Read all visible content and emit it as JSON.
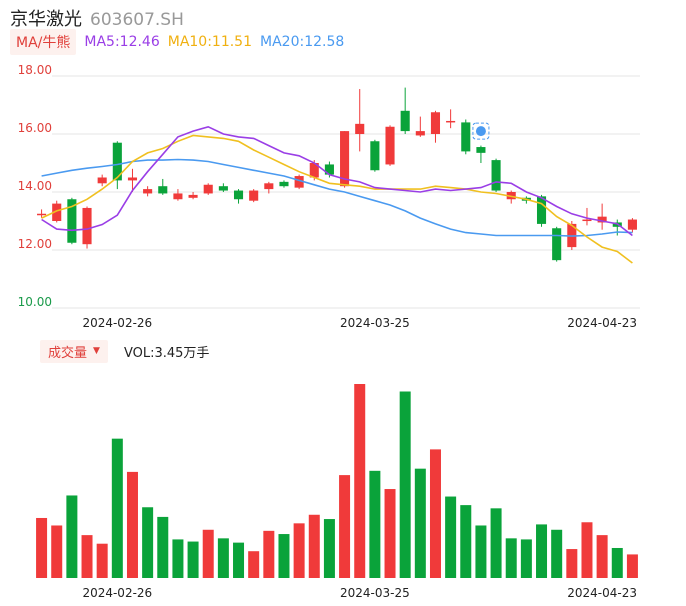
{
  "header": {
    "name": "京华激光",
    "code": "603607.SH"
  },
  "ma_row": {
    "tag": "MA/牛熊",
    "ma5": "MA5:12.46",
    "ma10": "MA10:11.51",
    "ma20": "MA20:12.58"
  },
  "vol_row": {
    "tag": "成交量",
    "text": "VOL:3.45万手"
  },
  "colors": {
    "up": "#f03a3a",
    "down": "#0aa33a",
    "ma5": "#9a3ee6",
    "ma10": "#f0c020",
    "ma20": "#4a9af0",
    "grid": "#e6e6e6"
  },
  "chart_data": {
    "type": "candlestick",
    "ylim": [
      10,
      18
    ],
    "y_ticks": [
      "18.00",
      "16.00",
      "14.00",
      "12.00",
      "10.00"
    ],
    "x_ticks": [
      "2024-02-26",
      "2024-03-25",
      "2024-04-23"
    ],
    "x_tick_indices": [
      5,
      22,
      37
    ],
    "candles": [
      {
        "o": 13.2,
        "c": 13.25,
        "h": 13.4,
        "l": 13.1
      },
      {
        "o": 13.0,
        "c": 13.6,
        "h": 13.7,
        "l": 12.95
      },
      {
        "o": 13.75,
        "c": 12.25,
        "h": 13.8,
        "l": 12.2
      },
      {
        "o": 12.2,
        "c": 13.45,
        "h": 13.5,
        "l": 12.05
      },
      {
        "o": 14.3,
        "c": 14.5,
        "h": 14.6,
        "l": 14.2
      },
      {
        "o": 15.7,
        "c": 14.4,
        "h": 15.75,
        "l": 14.1
      },
      {
        "o": 14.4,
        "c": 14.5,
        "h": 14.8,
        "l": 14.0
      },
      {
        "o": 13.95,
        "c": 14.1,
        "h": 14.2,
        "l": 13.85
      },
      {
        "o": 14.2,
        "c": 13.95,
        "h": 14.45,
        "l": 13.9
      },
      {
        "o": 13.75,
        "c": 13.95,
        "h": 14.1,
        "l": 13.7
      },
      {
        "o": 13.8,
        "c": 13.9,
        "h": 14.0,
        "l": 13.75
      },
      {
        "o": 13.95,
        "c": 14.25,
        "h": 14.3,
        "l": 13.9
      },
      {
        "o": 14.2,
        "c": 14.05,
        "h": 14.3,
        "l": 14.0
      },
      {
        "o": 14.05,
        "c": 13.75,
        "h": 14.1,
        "l": 13.6
      },
      {
        "o": 13.7,
        "c": 14.05,
        "h": 14.1,
        "l": 13.65
      },
      {
        "o": 14.1,
        "c": 14.3,
        "h": 14.35,
        "l": 13.95
      },
      {
        "o": 14.35,
        "c": 14.2,
        "h": 14.4,
        "l": 14.15
      },
      {
        "o": 14.15,
        "c": 14.55,
        "h": 14.6,
        "l": 14.1
      },
      {
        "o": 14.5,
        "c": 15.0,
        "h": 15.1,
        "l": 14.4
      },
      {
        "o": 14.95,
        "c": 14.6,
        "h": 15.05,
        "l": 14.5
      },
      {
        "o": 14.2,
        "c": 16.1,
        "h": 16.1,
        "l": 14.15
      },
      {
        "o": 16.0,
        "c": 16.35,
        "h": 17.55,
        "l": 15.4
      },
      {
        "o": 15.75,
        "c": 14.75,
        "h": 15.8,
        "l": 14.7
      },
      {
        "o": 14.95,
        "c": 16.25,
        "h": 16.3,
        "l": 14.9
      },
      {
        "o": 16.8,
        "c": 16.1,
        "h": 17.6,
        "l": 16.0
      },
      {
        "o": 15.95,
        "c": 16.1,
        "h": 16.6,
        "l": 15.9
      },
      {
        "o": 16.0,
        "c": 16.75,
        "h": 16.8,
        "l": 15.7
      },
      {
        "o": 16.4,
        "c": 16.45,
        "h": 16.85,
        "l": 16.2
      },
      {
        "o": 16.4,
        "c": 15.4,
        "h": 16.5,
        "l": 15.3
      },
      {
        "o": 15.55,
        "c": 15.35,
        "h": 15.6,
        "l": 15.0
      },
      {
        "o": 15.1,
        "c": 14.05,
        "h": 15.15,
        "l": 14.0
      },
      {
        "o": 13.75,
        "c": 14.0,
        "h": 14.05,
        "l": 13.6
      },
      {
        "o": 13.8,
        "c": 13.7,
        "h": 13.85,
        "l": 13.6
      },
      {
        "o": 13.85,
        "c": 12.9,
        "h": 13.9,
        "l": 12.8
      },
      {
        "o": 12.75,
        "c": 11.65,
        "h": 12.8,
        "l": 11.6
      },
      {
        "o": 12.1,
        "c": 12.9,
        "h": 13.0,
        "l": 12.0
      },
      {
        "o": 13.0,
        "c": 13.05,
        "h": 13.45,
        "l": 12.85
      },
      {
        "o": 12.95,
        "c": 13.15,
        "h": 13.6,
        "l": 12.7
      },
      {
        "o": 12.95,
        "c": 12.8,
        "h": 13.05,
        "l": 12.5
      },
      {
        "o": 12.7,
        "c": 13.05,
        "h": 13.1,
        "l": 12.6
      }
    ],
    "ma5": [
      13.05,
      12.72,
      12.68,
      12.72,
      12.88,
      13.2,
      14.05,
      14.7,
      15.3,
      15.9,
      16.1,
      16.25,
      16.0,
      15.9,
      15.85,
      15.6,
      15.35,
      15.25,
      15.0,
      14.6,
      14.45,
      14.35,
      14.15,
      14.1,
      14.05,
      14.0,
      14.1,
      14.05,
      14.1,
      14.15,
      14.35,
      14.3,
      14.0,
      13.8,
      13.5,
      13.25,
      13.1,
      13.0,
      12.9,
      12.5
    ],
    "ma10": [
      13.1,
      13.35,
      13.5,
      13.75,
      14.1,
      14.5,
      15.05,
      15.35,
      15.5,
      15.75,
      15.95,
      15.9,
      15.85,
      15.75,
      15.45,
      15.2,
      14.95,
      14.7,
      14.5,
      14.3,
      14.25,
      14.2,
      14.1,
      14.1,
      14.1,
      14.1,
      14.2,
      14.15,
      14.1,
      14.0,
      13.95,
      13.85,
      13.75,
      13.6,
      13.15,
      12.85,
      12.45,
      12.1,
      11.95,
      11.55
    ],
    "ma20": [
      14.55,
      14.65,
      14.75,
      14.82,
      14.88,
      14.95,
      15.05,
      15.1,
      15.1,
      15.12,
      15.1,
      15.05,
      14.95,
      14.85,
      14.75,
      14.65,
      14.55,
      14.4,
      14.25,
      14.1,
      14.0,
      13.85,
      13.7,
      13.55,
      13.35,
      13.1,
      12.9,
      12.72,
      12.6,
      12.55,
      12.5,
      12.5,
      12.5,
      12.5,
      12.5,
      12.48,
      12.5,
      12.55,
      12.62,
      12.6
    ],
    "volume": {
      "values": [
        56,
        49,
        77,
        40,
        32,
        130,
        99,
        66,
        57,
        36,
        34,
        45,
        37,
        33,
        25,
        44,
        41,
        51,
        59,
        55,
        96,
        181,
        100,
        83,
        174,
        102,
        120,
        76,
        68,
        49,
        65,
        37,
        36,
        50,
        45,
        27,
        52,
        40,
        28,
        22
      ],
      "up": [
        1,
        1,
        0,
        1,
        1,
        0,
        1,
        0,
        0,
        0,
        0,
        1,
        0,
        0,
        1,
        1,
        0,
        1,
        1,
        0,
        1,
        1,
        0,
        1,
        0,
        0,
        1,
        0,
        0,
        0,
        0,
        0,
        0,
        0,
        0,
        1,
        1,
        1,
        0,
        1
      ]
    }
  }
}
